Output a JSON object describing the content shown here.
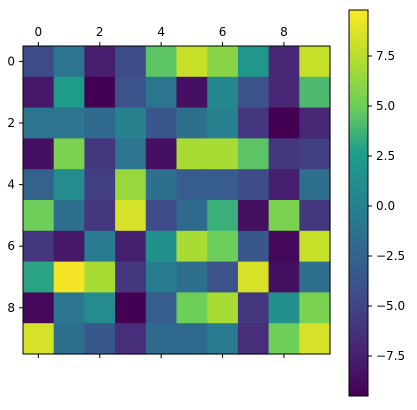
{
  "chart_data": {
    "type": "heatmap",
    "x_ticks": [
      "0",
      "2",
      "4",
      "6",
      "8"
    ],
    "x_tick_values": [
      0,
      2,
      4,
      6,
      8
    ],
    "y_ticks": [
      "0",
      "2",
      "4",
      "6",
      "8"
    ],
    "y_tick_values": [
      0,
      2,
      4,
      6,
      8
    ],
    "x_tick_position": "top",
    "colormap": "viridis",
    "vmin": -9.5,
    "vmax": 9.8,
    "colorbar": {
      "ticks": [
        "7.5",
        "5.0",
        "2.5",
        "0.0",
        "−2.5",
        "−5.0",
        "−7.5"
      ],
      "tick_values": [
        7.5,
        5.0,
        2.5,
        0.0,
        -2.5,
        -5.0,
        -7.5
      ],
      "placement": "right"
    },
    "values": [
      [
        -4.5,
        -1.0,
        -7.5,
        -4.5,
        4.5,
        8.0,
        6.0,
        2.0,
        -7.0,
        8.0
      ],
      [
        -8.0,
        2.5,
        -9.5,
        -4.0,
        -1.0,
        -8.5,
        0.5,
        -4.0,
        -7.0,
        4.0
      ],
      [
        -1.0,
        -1.0,
        -2.0,
        0.0,
        -3.5,
        -1.5,
        0.0,
        -6.0,
        -9.5,
        -7.0
      ],
      [
        -8.5,
        5.5,
        -6.0,
        -1.0,
        -8.5,
        7.0,
        7.0,
        4.5,
        -6.0,
        -5.5
      ],
      [
        -2.5,
        1.0,
        -5.5,
        6.5,
        -1.5,
        -3.0,
        -3.0,
        -4.5,
        -7.5,
        -1.5
      ],
      [
        5.0,
        -1.5,
        -6.0,
        8.5,
        -4.5,
        -2.0,
        3.5,
        -8.5,
        5.5,
        -6.0
      ],
      [
        -6.0,
        -8.0,
        -0.5,
        -7.5,
        1.5,
        7.0,
        5.0,
        -3.5,
        -9.0,
        8.0
      ],
      [
        3.0,
        9.5,
        7.0,
        -6.0,
        -0.5,
        -1.5,
        -4.0,
        8.5,
        -8.5,
        -1.5
      ],
      [
        -9.0,
        -1.0,
        1.0,
        -9.5,
        -3.0,
        5.0,
        7.0,
        -6.0,
        1.5,
        5.5
      ],
      [
        8.5,
        -1.5,
        -3.5,
        -6.5,
        -2.0,
        -2.0,
        -0.5,
        -6.5,
        5.0,
        8.5
      ]
    ]
  }
}
